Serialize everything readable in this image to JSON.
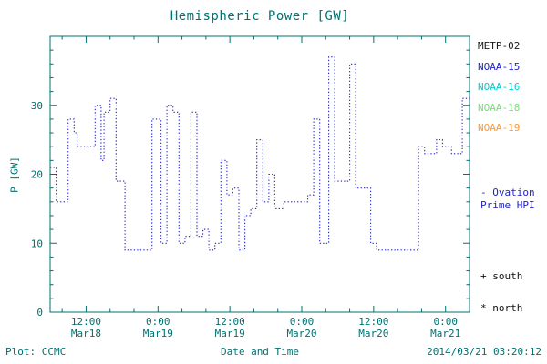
{
  "colors": {
    "frame": "#007070",
    "line": "#2222cc",
    "background": "#ffffff"
  },
  "chart_data": {
    "type": "line",
    "subtype": "step-dotted",
    "title": "Hemispheric Power [GW]",
    "xlabel": "Date and Time",
    "ylabel": "P [GW]",
    "x_unit_note": "hours from left edge of plot (about 06:00 Mar 18 2014)",
    "xlim": [
      0,
      70
    ],
    "ylim": [
      0,
      40
    ],
    "grid": false,
    "legend_position": "right",
    "y_ticks": [
      0,
      10,
      20,
      30
    ],
    "x_ticks": [
      {
        "t": 6,
        "time": "12:00",
        "date": "Mar18"
      },
      {
        "t": 18,
        "time": "0:00",
        "date": "Mar19"
      },
      {
        "t": 30,
        "time": "12:00",
        "date": "Mar19"
      },
      {
        "t": 42,
        "time": "0:00",
        "date": "Mar20"
      },
      {
        "t": 54,
        "time": "12:00",
        "date": "Mar20"
      },
      {
        "t": 66,
        "time": "0:00",
        "date": "Mar21"
      }
    ],
    "series": [
      {
        "name": "Ovation Prime HPI",
        "color": "#2222cc",
        "points": [
          [
            0,
            21
          ],
          [
            1,
            16
          ],
          [
            2.5,
            16
          ],
          [
            3,
            28
          ],
          [
            4,
            26
          ],
          [
            4.5,
            24
          ],
          [
            7,
            24
          ],
          [
            7.5,
            30
          ],
          [
            8.5,
            22
          ],
          [
            9,
            29
          ],
          [
            10,
            31
          ],
          [
            11,
            19
          ],
          [
            12,
            19
          ],
          [
            12.5,
            9
          ],
          [
            16.5,
            9
          ],
          [
            17,
            28
          ],
          [
            18,
            28
          ],
          [
            18.5,
            10
          ],
          [
            19.5,
            30
          ],
          [
            20.5,
            29
          ],
          [
            21.5,
            10
          ],
          [
            22.5,
            11
          ],
          [
            23.5,
            29
          ],
          [
            24.5,
            11
          ],
          [
            25.5,
            12
          ],
          [
            26.5,
            9
          ],
          [
            27.5,
            10
          ],
          [
            28.5,
            22
          ],
          [
            29.5,
            17
          ],
          [
            30.5,
            18
          ],
          [
            31.5,
            9
          ],
          [
            32.5,
            14
          ],
          [
            33.5,
            15
          ],
          [
            34.5,
            25
          ],
          [
            35.5,
            16
          ],
          [
            36.5,
            20
          ],
          [
            37.5,
            15
          ],
          [
            39,
            16
          ],
          [
            41,
            16
          ],
          [
            43,
            17
          ],
          [
            44,
            28
          ],
          [
            45,
            10
          ],
          [
            46.5,
            37
          ],
          [
            47.5,
            19
          ],
          [
            49,
            19
          ],
          [
            50,
            36
          ],
          [
            51,
            18
          ],
          [
            52.5,
            18
          ],
          [
            53.5,
            10
          ],
          [
            54.5,
            9
          ],
          [
            61,
            9
          ],
          [
            61.5,
            24
          ],
          [
            62.5,
            23
          ],
          [
            64,
            23
          ],
          [
            64.5,
            25
          ],
          [
            65.5,
            24
          ],
          [
            66.5,
            24
          ],
          [
            67,
            23
          ],
          [
            68.5,
            23
          ],
          [
            68.8,
            31
          ],
          [
            70,
            31
          ]
        ]
      }
    ]
  },
  "legend": {
    "satellites": [
      {
        "label": "METP-02",
        "color": "#1a1a1a"
      },
      {
        "label": "NOAA-15",
        "color": "#2222cc"
      },
      {
        "label": "NOAA-16",
        "color": "#00cccc"
      },
      {
        "label": "NOAA-18",
        "color": "#77dd77"
      },
      {
        "label": "NOAA-19",
        "color": "#ff9933"
      }
    ],
    "ovation": [
      "- Ovation",
      "Prime HPI"
    ],
    "south_marker": "+ south",
    "north_marker": "* north"
  },
  "footer": {
    "plot_credit": "Plot: CCMC",
    "timestamp": "2014/03/21 03:20:12"
  }
}
